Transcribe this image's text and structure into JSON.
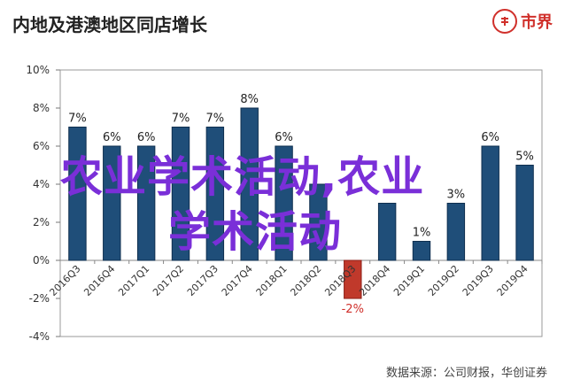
{
  "header": {
    "title": "内地及港澳地区同店增长",
    "logo_text": "市界"
  },
  "overlay": {
    "line1": "农业学术活动,农业",
    "line2": "学术活动"
  },
  "source": "数据来源：公司财报，华创证券",
  "colors": {
    "bar": "#1f4e79",
    "bar_edge": "#0f2f4f",
    "negative_bar": "#c0392b",
    "negative_label": "#d0302b",
    "overlay_text": "#7a2fd8",
    "logo": "#d0302b"
  },
  "chart_data": {
    "type": "bar",
    "title": "内地及港澳地区同店增长",
    "xlabel": "",
    "ylabel": "",
    "categories": [
      "2016Q3",
      "2016Q4",
      "2017Q1",
      "2017Q2",
      "2017Q3",
      "2017Q4",
      "2018Q1",
      "2018Q2",
      "2018Q3",
      "2018Q4",
      "2019Q1",
      "2019Q2",
      "2019Q3",
      "2019Q4"
    ],
    "values": [
      7,
      6,
      6,
      7,
      7,
      8,
      6,
      4,
      -2,
      3,
      1,
      3,
      6,
      5
    ],
    "data_labels": [
      "7%",
      "6%",
      "6%",
      "7%",
      "7%",
      "8%",
      "6%",
      "",
      "-2%",
      "",
      "1%",
      "3%",
      "6%",
      "5%"
    ],
    "ylim": [
      -4,
      10
    ],
    "yticks": [
      -4,
      -2,
      0,
      2,
      4,
      6,
      8,
      10
    ],
    "ytick_labels": [
      "-4%",
      "-2%",
      "0%",
      "2%",
      "4%",
      "6%",
      "8%",
      "10%"
    ],
    "grid": false,
    "legend": "none"
  }
}
